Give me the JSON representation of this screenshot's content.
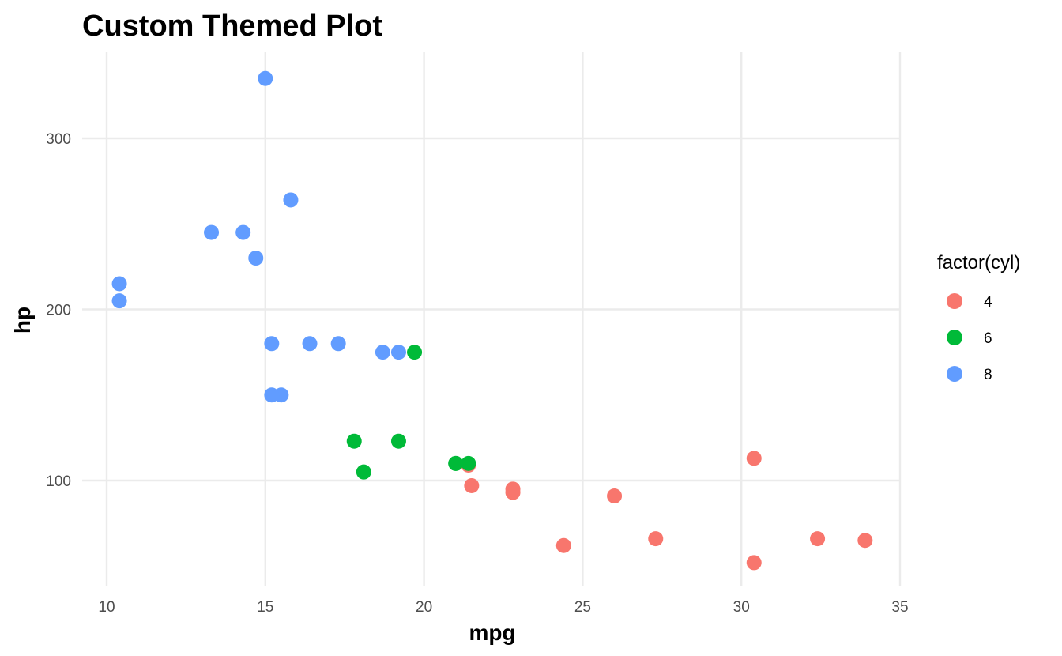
{
  "chart_data": {
    "type": "scatter",
    "title": "Custom Themed Plot",
    "xlabel": "mpg",
    "ylabel": "hp",
    "xlim": [
      10,
      35
    ],
    "ylim": [
      45,
      340
    ],
    "xticks": [
      10,
      15,
      20,
      25,
      30,
      35
    ],
    "yticks": [
      100,
      200,
      300
    ],
    "grid": true,
    "legend": {
      "title": "factor(cyl)",
      "position": "right"
    },
    "series": [
      {
        "name": "4",
        "color": "#F8766D",
        "points": [
          [
            22.8,
            93
          ],
          [
            24.4,
            62
          ],
          [
            22.8,
            95
          ],
          [
            32.4,
            66
          ],
          [
            30.4,
            52
          ],
          [
            33.9,
            65
          ],
          [
            21.5,
            97
          ],
          [
            27.3,
            66
          ],
          [
            26.0,
            91
          ],
          [
            30.4,
            113
          ],
          [
            21.4,
            109
          ]
        ]
      },
      {
        "name": "6",
        "color": "#00BA38",
        "points": [
          [
            21.0,
            110
          ],
          [
            21.0,
            110
          ],
          [
            21.4,
            110
          ],
          [
            18.1,
            105
          ],
          [
            19.2,
            123
          ],
          [
            17.8,
            123
          ],
          [
            19.7,
            175
          ]
        ]
      },
      {
        "name": "8",
        "color": "#619CFF",
        "points": [
          [
            18.7,
            175
          ],
          [
            14.3,
            245
          ],
          [
            16.4,
            180
          ],
          [
            17.3,
            180
          ],
          [
            15.2,
            180
          ],
          [
            10.4,
            205
          ],
          [
            10.4,
            215
          ],
          [
            14.7,
            230
          ],
          [
            15.5,
            150
          ],
          [
            15.2,
            150
          ],
          [
            13.3,
            245
          ],
          [
            19.2,
            175
          ],
          [
            15.8,
            264
          ],
          [
            15.0,
            335
          ]
        ]
      }
    ]
  }
}
